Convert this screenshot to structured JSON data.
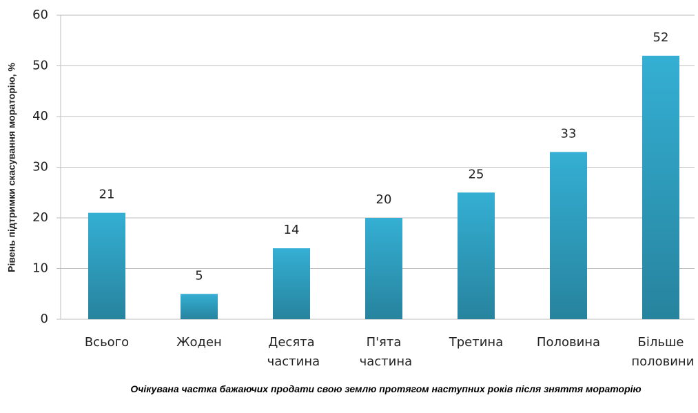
{
  "chart_data": {
    "type": "bar",
    "ylabel": "Рівень підтримки скасування мораторію, %",
    "xlabel": "Очікувана частка бажаючих продати свою землю протягом наступних років після зняття мораторію",
    "categories": [
      "Всього",
      "Жоден",
      "Десята частина",
      "П'ята частина",
      "Третина",
      "Половина",
      "Більше половини"
    ],
    "values": [
      21,
      5,
      14,
      20,
      25,
      33,
      52
    ],
    "color": "#34afd3",
    "ylim": [
      0,
      60
    ],
    "yticks": [
      0,
      10,
      20,
      30,
      40,
      50,
      60
    ],
    "grid": true
  }
}
